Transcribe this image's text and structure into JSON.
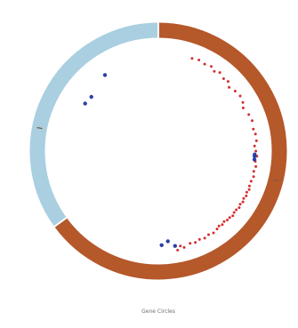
{
  "chart_data": {
    "type": "circos",
    "caption": "Gene Circles",
    "sectors": [
      {
        "name": "",
        "start_deg": 0,
        "end_deg": 234,
        "color": "#b5582a"
      },
      {
        "name": "",
        "start_deg": 234,
        "end_deg": 360,
        "color": "#a9cfe1"
      }
    ],
    "tick_marks_deg": [
      104,
      281
    ],
    "point_series": [
      {
        "name": "",
        "color": "#d32f2f",
        "points": [
          {
            "angle": 20,
            "r": 0.87
          },
          {
            "angle": 24,
            "r": 0.88
          },
          {
            "angle": 28,
            "r": 0.87
          },
          {
            "angle": 32,
            "r": 0.88
          },
          {
            "angle": 35,
            "r": 0.86
          },
          {
            "angle": 38,
            "r": 0.88
          },
          {
            "angle": 42,
            "r": 0.86
          },
          {
            "angle": 45,
            "r": 0.87
          },
          {
            "angle": 48,
            "r": 0.84
          },
          {
            "angle": 52,
            "r": 0.86
          },
          {
            "angle": 56,
            "r": 0.87
          },
          {
            "angle": 60,
            "r": 0.86
          },
          {
            "angle": 63,
            "r": 0.84
          },
          {
            "angle": 68,
            "r": 0.86
          },
          {
            "angle": 72,
            "r": 0.87
          },
          {
            "angle": 77,
            "r": 0.86
          },
          {
            "angle": 80,
            "r": 0.87
          },
          {
            "angle": 84,
            "r": 0.87
          },
          {
            "angle": 87,
            "r": 0.85
          },
          {
            "angle": 90,
            "r": 0.86
          },
          {
            "angle": 93,
            "r": 0.87
          },
          {
            "angle": 96,
            "r": 0.86
          },
          {
            "angle": 99,
            "r": 0.87
          },
          {
            "angle": 102,
            "r": 0.86
          },
          {
            "angle": 105,
            "r": 0.87
          },
          {
            "angle": 108,
            "r": 0.86
          },
          {
            "angle": 111,
            "r": 0.86
          },
          {
            "angle": 113,
            "r": 0.87
          },
          {
            "angle": 115,
            "r": 0.86
          },
          {
            "angle": 117,
            "r": 0.87
          },
          {
            "angle": 119,
            "r": 0.86
          },
          {
            "angle": 121,
            "r": 0.87
          },
          {
            "angle": 123,
            "r": 0.86
          },
          {
            "angle": 125,
            "r": 0.87
          },
          {
            "angle": 127,
            "r": 0.86
          },
          {
            "angle": 129,
            "r": 0.86
          },
          {
            "angle": 131,
            "r": 0.87
          },
          {
            "angle": 133,
            "r": 0.86
          },
          {
            "angle": 135,
            "r": 0.86
          },
          {
            "angle": 137,
            "r": 0.85
          },
          {
            "angle": 139,
            "r": 0.86
          },
          {
            "angle": 141,
            "r": 0.85
          },
          {
            "angle": 143,
            "r": 0.86
          },
          {
            "angle": 146,
            "r": 0.87
          },
          {
            "angle": 149,
            "r": 0.86
          },
          {
            "angle": 152,
            "r": 0.87
          },
          {
            "angle": 155,
            "r": 0.86
          },
          {
            "angle": 158,
            "r": 0.87
          },
          {
            "angle": 161,
            "r": 0.86
          },
          {
            "angle": 165,
            "r": 0.88
          },
          {
            "angle": 167,
            "r": 0.86
          },
          {
            "angle": 169,
            "r": 0.89
          }
        ]
      },
      {
        "name": "",
        "color": "#2b3fa6",
        "points": [
          {
            "angle": 92,
            "r": 0.85
          },
          {
            "angle": 93,
            "r": 0.85
          },
          {
            "angle": 95,
            "r": 0.85
          },
          {
            "angle": 170,
            "r": 0.85
          },
          {
            "angle": 174,
            "r": 0.8
          },
          {
            "angle": 178,
            "r": 0.83
          },
          {
            "angle": 303,
            "r": 0.77
          },
          {
            "angle": 309,
            "r": 0.76
          },
          {
            "angle": 325,
            "r": 0.82
          }
        ]
      }
    ]
  }
}
